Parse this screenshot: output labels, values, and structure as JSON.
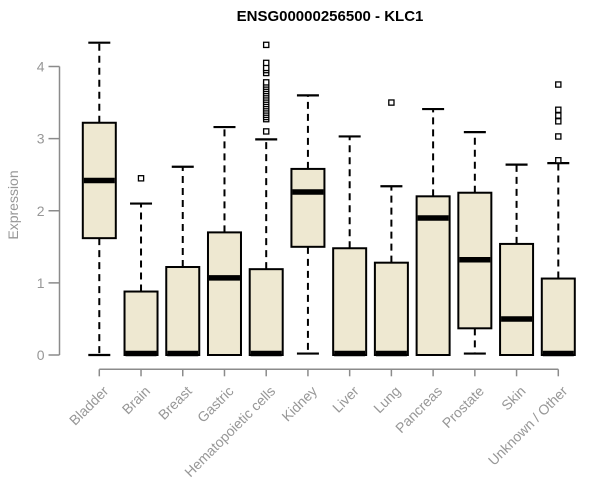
{
  "colors": {
    "box_fill": "#EEE8D1",
    "box_border": "#000000",
    "median": "#000000",
    "whisker": "#000000",
    "outlier_fill": "#ffffff",
    "axis": "#8B8B8B",
    "tick_label": "#979797",
    "title": "#000000",
    "background": "#ffffff"
  },
  "chart_data": {
    "type": "boxplot",
    "title": "ENSG00000256500 - KLC1",
    "xlabel": "",
    "ylabel": "Expression",
    "ylim": [
      0,
      4.45
    ],
    "yticks": [
      0,
      1,
      2,
      3,
      4
    ],
    "grid": false,
    "legend": "none",
    "categories": [
      "Bladder",
      "Brain",
      "Breast",
      "Gastric",
      "Hematopoietic cells",
      "Kidney",
      "Liver",
      "Lung",
      "Pancreas",
      "Prostate",
      "Skin",
      "Unknown / Other"
    ],
    "series": [
      {
        "label": "Bladder",
        "whisker_low": 0,
        "q1": 1.62,
        "median": 2.42,
        "q3": 3.22,
        "whisker_high": 4.33,
        "outliers": []
      },
      {
        "label": "Brain",
        "whisker_low": 0,
        "q1": 0,
        "median": 0.02,
        "q3": 0.88,
        "whisker_high": 2.1,
        "outliers": [
          2.45
        ]
      },
      {
        "label": "Breast",
        "whisker_low": 0,
        "q1": 0,
        "median": 0.02,
        "q3": 1.22,
        "whisker_high": 2.61,
        "outliers": []
      },
      {
        "label": "Gastric",
        "whisker_low": 0,
        "q1": 0,
        "median": 1.07,
        "q3": 1.7,
        "whisker_high": 3.16,
        "outliers": []
      },
      {
        "label": "Hematopoietic cells",
        "whisker_low": 0,
        "q1": 0,
        "median": 0.02,
        "q3": 1.19,
        "whisker_high": 2.99,
        "outliers": [
          3.1,
          3.27,
          3.3,
          3.33,
          3.36,
          3.39,
          3.42,
          3.45,
          3.48,
          3.51,
          3.54,
          3.57,
          3.6,
          3.63,
          3.66,
          3.69,
          3.72,
          3.75,
          3.78,
          3.91,
          3.95,
          3.98,
          4.05,
          4.3
        ]
      },
      {
        "label": "Kidney",
        "whisker_low": 0.02,
        "q1": 1.5,
        "median": 2.26,
        "q3": 2.58,
        "whisker_high": 3.6,
        "outliers": []
      },
      {
        "label": "Liver",
        "whisker_low": 0,
        "q1": 0,
        "median": 0.02,
        "q3": 1.48,
        "whisker_high": 3.03,
        "outliers": []
      },
      {
        "label": "Lung",
        "whisker_low": 0,
        "q1": 0,
        "median": 0.02,
        "q3": 1.28,
        "whisker_high": 2.34,
        "outliers": [
          3.5
        ]
      },
      {
        "label": "Pancreas",
        "whisker_low": 0,
        "q1": 0,
        "median": 1.9,
        "q3": 2.2,
        "whisker_high": 3.41,
        "outliers": []
      },
      {
        "label": "Prostate",
        "whisker_low": 0.02,
        "q1": 0.37,
        "median": 1.32,
        "q3": 2.25,
        "whisker_high": 3.09,
        "outliers": []
      },
      {
        "label": "Skin",
        "whisker_low": 0,
        "q1": 0,
        "median": 0.5,
        "q3": 1.54,
        "whisker_high": 2.64,
        "outliers": []
      },
      {
        "label": "Unknown / Other",
        "whisker_low": 0,
        "q1": 0,
        "median": 0.02,
        "q3": 1.06,
        "whisker_high": 2.66,
        "outliers": [
          2.7,
          3.03,
          3.24,
          3.32,
          3.4,
          3.75
        ]
      }
    ]
  }
}
